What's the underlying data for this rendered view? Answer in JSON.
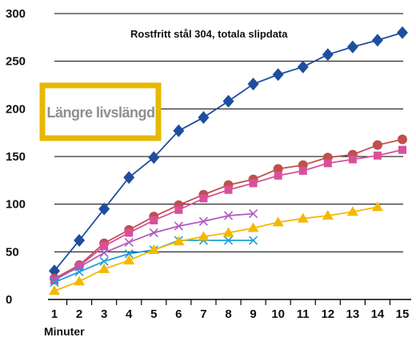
{
  "chart_data": {
    "type": "line",
    "title": "Rostfritt stål 304, totala slipdata",
    "xlabel": "Minuter",
    "ylabel": "",
    "xlim": [
      1,
      15
    ],
    "ylim": [
      0,
      300
    ],
    "x_ticks": [
      1,
      2,
      3,
      4,
      5,
      6,
      7,
      8,
      9,
      10,
      11,
      12,
      13,
      14,
      15
    ],
    "y_ticks": [
      0,
      50,
      100,
      150,
      200,
      250,
      300
    ],
    "grid": "horizontal",
    "legend": "none",
    "annotation": {
      "text": "Längre livslängd",
      "border_color": "#e6b800"
    },
    "series": [
      {
        "color": "#1f4e9e",
        "marker": "diamond",
        "x": [
          1,
          2,
          3,
          4,
          5,
          6,
          7,
          8,
          9,
          10,
          11,
          12,
          13,
          14,
          15
        ],
        "y": [
          30,
          62,
          95,
          128,
          149,
          177,
          191,
          208,
          226,
          236,
          244,
          257,
          265,
          272,
          280
        ]
      },
      {
        "color": "#c0504d",
        "marker": "circle",
        "x": [
          1,
          2,
          3,
          4,
          5,
          6,
          7,
          8,
          9,
          10,
          11,
          12,
          13,
          14,
          15
        ],
        "y": [
          22,
          36,
          59,
          73,
          87,
          99,
          110,
          120,
          126,
          137,
          141,
          149,
          152,
          162,
          168
        ]
      },
      {
        "color": "#d9509a",
        "marker": "square",
        "x": [
          1,
          2,
          3,
          4,
          5,
          6,
          7,
          8,
          9,
          10,
          11,
          12,
          13,
          14,
          15
        ],
        "y": [
          20,
          35,
          56,
          70,
          83,
          94,
          106,
          115,
          122,
          130,
          135,
          143,
          147,
          151,
          157
        ]
      },
      {
        "color": "#b05abf",
        "marker": "x",
        "x": [
          1,
          2,
          3,
          4,
          5,
          6,
          7,
          8,
          9
        ],
        "y": [
          21,
          34,
          49,
          60,
          70,
          77,
          82,
          88,
          90
        ]
      },
      {
        "color": "#1aa0d8",
        "marker": "x",
        "x": [
          1,
          2,
          3,
          4,
          5,
          6,
          7,
          8,
          9
        ],
        "y": [
          18,
          29,
          40,
          48,
          52,
          62,
          62,
          62,
          62
        ]
      },
      {
        "color": "#f5b800",
        "marker": "triangle",
        "x": [
          1,
          2,
          3,
          4,
          5,
          6,
          7,
          8,
          9,
          10,
          11,
          12,
          13,
          14
        ],
        "y": [
          9,
          19,
          32,
          41,
          52,
          61,
          66,
          70,
          75,
          81,
          85,
          88,
          92,
          97
        ]
      }
    ]
  }
}
